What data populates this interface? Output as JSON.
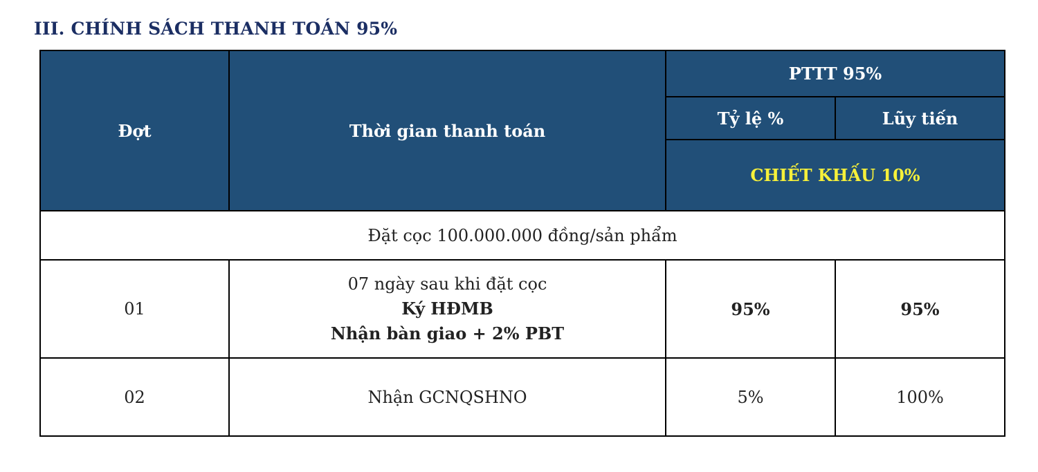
{
  "title": "III. CHÍNH SÁCH THANH TOÁN 95%",
  "table": {
    "headers": {
      "dot": "Đợt",
      "time": "Thời gian thanh toán",
      "group": "PTTT 95%",
      "ratio": "Tỷ lệ %",
      "cumulative": "Lũy tiến",
      "discount": "CHIẾT KHẤU 10%"
    },
    "deposit": "Đặt cọc 100.000.000 đồng/sản phẩm",
    "rows": [
      {
        "dot": "01",
        "time_lines": [
          "07 ngày sau khi đặt cọc",
          "Ký HĐMB",
          "Nhận bàn giao + 2% PBT"
        ],
        "ratio": "95%",
        "cumulative": "95%"
      },
      {
        "dot": "02",
        "time_lines": [
          "Nhận GCNQSHNO"
        ],
        "ratio": "5%",
        "cumulative": "100%"
      }
    ]
  },
  "colors": {
    "title": "#1b2e63",
    "header_bg": "#214f78",
    "header_text": "#ffffff",
    "discount_text": "#f6f03a"
  }
}
